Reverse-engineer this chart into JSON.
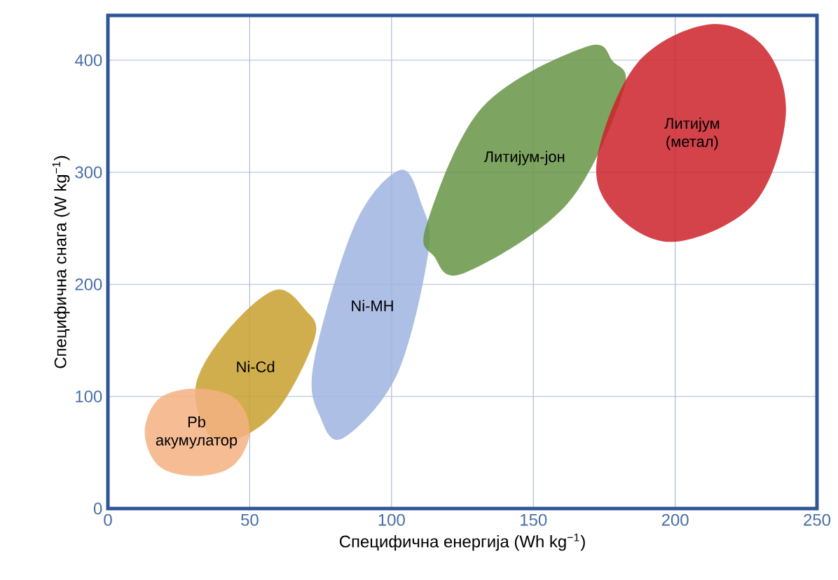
{
  "chart_data": {
    "type": "area",
    "xlabel": "Специфична енергија (Wh kg$^{−1}$)",
    "ylabel": "Специфична снага (W kg$^{−1}$)",
    "xlim": [
      0,
      250
    ],
    "ylim": [
      0,
      440
    ],
    "xticks": [
      0,
      50,
      100,
      150,
      200,
      250
    ],
    "yticks": [
      0,
      100,
      200,
      300,
      400
    ],
    "grid": true,
    "series": [
      {
        "name": "Ni-Cd",
        "color": "#c8a02e",
        "x": [
          59,
          69.7,
          73,
          60.7,
          45.6,
          35.3,
          31,
          41.9
        ],
        "values": [
          195,
          177,
          153,
          91,
          62,
          67,
          110,
          158
        ]
      },
      {
        "name": "Pb акумулатор",
        "color": "#f4b183",
        "x": [
          31,
          45,
          50,
          44,
          31,
          18,
          13,
          18
        ],
        "values": [
          107,
          98,
          68,
          38,
          29,
          38,
          68,
          98
        ]
      },
      {
        "name": "Ni-MH",
        "color": "#a0b4e0",
        "x": [
          103,
          110.5,
          113,
          102,
          83,
          75,
          72.5,
          87
        ],
        "values": [
          302,
          272,
          229,
          120,
          63,
          81,
          129,
          253
        ]
      },
      {
        "name": "Литијум-јон",
        "color": "#669445",
        "x": [
          168.6,
          178,
          181.8,
          162,
          125.5,
          115,
          112.3,
          132
        ],
        "values": [
          412,
          399,
          373,
          272,
          210,
          225,
          253,
          358
        ]
      },
      {
        "name": "Литијум (метал)",
        "color": "#cc2229",
        "x": [
          212,
          231.6,
          239,
          227.8,
          199.6,
          179,
          172.4,
          186.5
        ],
        "values": [
          432,
          411,
          351,
          272,
          238,
          263,
          311,
          397
        ]
      }
    ]
  }
}
